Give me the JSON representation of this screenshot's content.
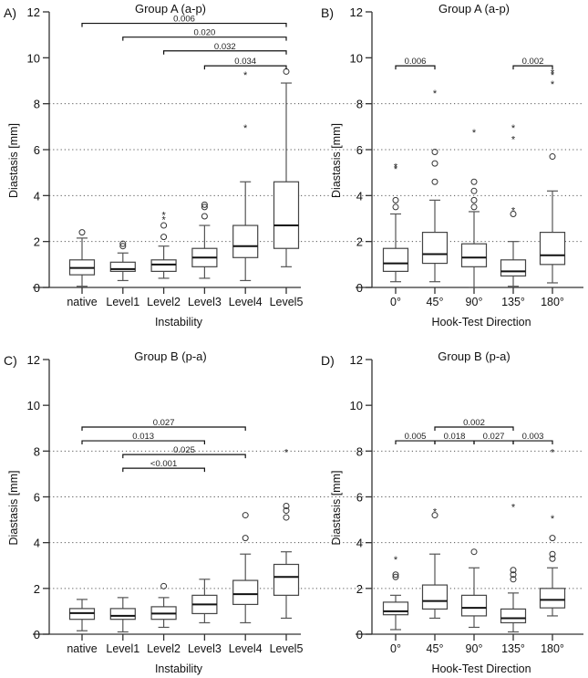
{
  "chart_data": [
    {
      "panel": "A)",
      "type": "box",
      "title": "Group A (a-p)",
      "xlabel": "Instability",
      "ylabel": "Diastasis [mm]",
      "ylim": [
        0,
        12
      ],
      "yticks": [
        0,
        2,
        4,
        6,
        8,
        10,
        12
      ],
      "grid_y": [
        2,
        4,
        6,
        8
      ],
      "categories": [
        "native",
        "Level1",
        "Level2",
        "Level3",
        "Level4",
        "Level5"
      ],
      "boxes": [
        {
          "min": 0.05,
          "q1": 0.55,
          "median": 0.85,
          "q3": 1.2,
          "max": 2.15,
          "circles": [
            2.4
          ],
          "stars": []
        },
        {
          "min": 0.3,
          "q1": 0.7,
          "median": 0.8,
          "q3": 1.1,
          "max": 1.5,
          "circles": [
            1.8,
            1.9
          ],
          "stars": []
        },
        {
          "min": 0.4,
          "q1": 0.7,
          "median": 1.0,
          "q3": 1.2,
          "max": 1.8,
          "circles": [
            2.2,
            2.7
          ],
          "stars": [
            3.0,
            3.2
          ]
        },
        {
          "min": 0.4,
          "q1": 0.9,
          "median": 1.3,
          "q3": 1.7,
          "max": 2.7,
          "circles": [
            3.1,
            3.5,
            3.6
          ],
          "stars": []
        },
        {
          "min": 0.3,
          "q1": 1.3,
          "median": 1.8,
          "q3": 2.7,
          "max": 4.6,
          "circles": [],
          "stars": [
            7.0,
            9.3
          ]
        },
        {
          "min": 0.9,
          "q1": 1.7,
          "median": 2.7,
          "q3": 4.6,
          "max": 8.9,
          "circles": [
            9.4
          ],
          "stars": []
        }
      ],
      "significance": [
        {
          "from": 0,
          "to": 5,
          "y": 11.5,
          "label": "0.006"
        },
        {
          "from": 1,
          "to": 5,
          "y": 10.9,
          "label": "0.020"
        },
        {
          "from": 2,
          "to": 5,
          "y": 10.3,
          "label": "0.032"
        },
        {
          "from": 3,
          "to": 5,
          "y": 9.65,
          "label": "0.034"
        }
      ]
    },
    {
      "panel": "B)",
      "type": "box",
      "title": "Group A (a-p)",
      "xlabel": "Hook-Test Direction",
      "ylabel": "Diastasis [mm]",
      "ylim": [
        0,
        12
      ],
      "yticks": [
        0,
        2,
        4,
        6,
        8,
        10,
        12
      ],
      "grid_y": [
        2,
        4,
        6,
        8
      ],
      "categories": [
        "0°",
        "45°",
        "90°",
        "135°",
        "180°"
      ],
      "boxes": [
        {
          "min": 0.25,
          "q1": 0.7,
          "median": 1.05,
          "q3": 1.7,
          "max": 3.2,
          "circles": [
            3.5,
            3.8
          ],
          "stars": [
            5.2,
            5.3
          ]
        },
        {
          "min": 0.25,
          "q1": 1.05,
          "median": 1.45,
          "q3": 2.4,
          "max": 3.8,
          "circles": [
            4.6,
            5.4,
            5.9
          ],
          "stars": [
            8.5
          ]
        },
        {
          "min": 0.0,
          "q1": 0.9,
          "median": 1.3,
          "q3": 1.9,
          "max": 3.3,
          "circles": [
            3.5,
            3.8,
            4.2,
            4.6
          ],
          "stars": [
            6.8
          ]
        },
        {
          "min": 0.05,
          "q1": 0.5,
          "median": 0.7,
          "q3": 1.2,
          "max": 2.0,
          "circles": [
            3.2
          ],
          "stars": [
            3.4,
            6.5,
            7.0
          ]
        },
        {
          "min": 0.2,
          "q1": 1.0,
          "median": 1.4,
          "q3": 2.4,
          "max": 4.2,
          "circles": [
            5.7
          ],
          "stars": [
            8.9,
            9.3,
            9.4
          ]
        }
      ],
      "significance": [
        {
          "from": 0,
          "to": 1,
          "y": 9.65,
          "label": "0.006"
        },
        {
          "from": 3,
          "to": 4,
          "y": 9.65,
          "label": "0.002"
        }
      ]
    },
    {
      "panel": "C)",
      "type": "box",
      "title": "Group B (p-a)",
      "xlabel": "Instability",
      "ylabel": "Diastasis [mm]",
      "ylim": [
        0,
        12
      ],
      "yticks": [
        0,
        2,
        4,
        6,
        8,
        10,
        12
      ],
      "grid_y": [
        2,
        4,
        6,
        8
      ],
      "categories": [
        "native",
        "Level1",
        "Level2",
        "Level3",
        "Level4",
        "Level5"
      ],
      "boxes": [
        {
          "min": 0.15,
          "q1": 0.65,
          "median": 0.92,
          "q3": 1.12,
          "max": 1.52,
          "circles": [],
          "stars": []
        },
        {
          "min": 0.1,
          "q1": 0.65,
          "median": 0.8,
          "q3": 1.12,
          "max": 1.6,
          "circles": [],
          "stars": []
        },
        {
          "min": 0.3,
          "q1": 0.65,
          "median": 0.9,
          "q3": 1.2,
          "max": 1.6,
          "circles": [
            2.1
          ],
          "stars": []
        },
        {
          "min": 0.5,
          "q1": 0.9,
          "median": 1.3,
          "q3": 1.7,
          "max": 2.4,
          "circles": [],
          "stars": []
        },
        {
          "min": 0.5,
          "q1": 1.3,
          "median": 1.75,
          "q3": 2.35,
          "max": 3.5,
          "circles": [
            4.2,
            5.2
          ],
          "stars": []
        },
        {
          "min": 0.7,
          "q1": 1.7,
          "median": 2.5,
          "q3": 3.05,
          "max": 3.6,
          "circles": [
            5.1,
            5.4,
            5.6
          ],
          "stars": [
            8.0
          ]
        }
      ],
      "significance": [
        {
          "from": 0,
          "to": 4,
          "y": 9.05,
          "label": "0.027"
        },
        {
          "from": 0,
          "to": 3,
          "y": 8.45,
          "label": "0.013"
        },
        {
          "from": 1,
          "to": 4,
          "y": 7.85,
          "label": "0.025"
        },
        {
          "from": 1,
          "to": 3,
          "y": 7.25,
          "label": "<0.001"
        }
      ]
    },
    {
      "panel": "D)",
      "type": "box",
      "title": "Group B (p-a)",
      "xlabel": "Hook-Test Direction",
      "ylabel": "Diastasis [mm]",
      "ylim": [
        0,
        12
      ],
      "yticks": [
        0,
        2,
        4,
        6,
        8,
        10,
        12
      ],
      "grid_y": [
        2,
        4,
        6,
        8
      ],
      "categories": [
        "0°",
        "45°",
        "90°",
        "135°",
        "180°"
      ],
      "boxes": [
        {
          "min": 0.2,
          "q1": 0.85,
          "median": 1.0,
          "q3": 1.4,
          "max": 1.7,
          "circles": [
            2.5,
            2.6
          ],
          "stars": [
            3.3
          ]
        },
        {
          "min": 0.7,
          "q1": 1.1,
          "median": 1.45,
          "q3": 2.15,
          "max": 3.5,
          "circles": [
            5.2
          ],
          "stars": [
            5.4
          ]
        },
        {
          "min": 0.3,
          "q1": 0.8,
          "median": 1.15,
          "q3": 1.7,
          "max": 2.9,
          "circles": [
            3.6
          ],
          "stars": []
        },
        {
          "min": 0.1,
          "q1": 0.5,
          "median": 0.7,
          "q3": 1.1,
          "max": 1.8,
          "circles": [
            2.4,
            2.6,
            2.8
          ],
          "stars": [
            5.6
          ]
        },
        {
          "min": 0.8,
          "q1": 1.15,
          "median": 1.5,
          "q3": 2.0,
          "max": 2.9,
          "circles": [
            3.3,
            3.5,
            4.2
          ],
          "stars": [
            5.1,
            8.0
          ]
        }
      ],
      "significance": [
        {
          "from": 1,
          "to": 3,
          "y": 9.05,
          "label": "0.002"
        },
        {
          "from": 0,
          "to": 1,
          "y": 8.45,
          "label": "0.005"
        },
        {
          "from": 1,
          "to": 2,
          "y": 8.45,
          "label": "0.018"
        },
        {
          "from": 2,
          "to": 3,
          "y": 8.45,
          "label": "0.027"
        },
        {
          "from": 3,
          "to": 4,
          "y": 8.45,
          "label": "0.003"
        }
      ]
    }
  ]
}
